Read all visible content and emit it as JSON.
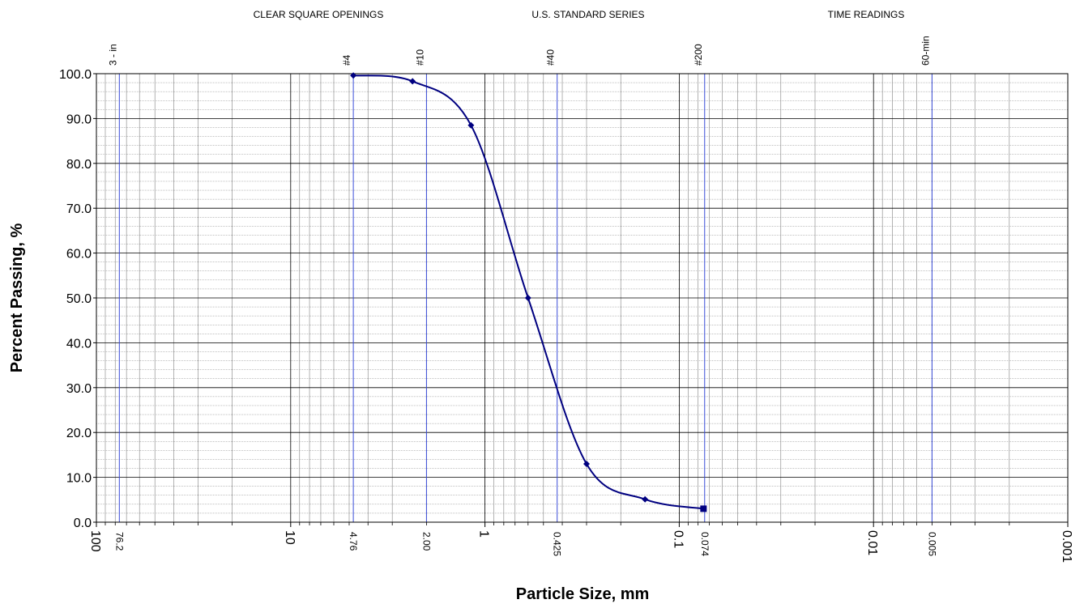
{
  "chart_data": {
    "type": "line",
    "x_scale": "log",
    "x_reversed": true,
    "xlim": [
      100,
      0.001
    ],
    "ylim": [
      0,
      100
    ],
    "xlabel": "Particle Size, mm",
    "ylabel": "Percent Passing, %",
    "header_labels": [
      "CLEAR SQUARE OPENINGS",
      "U.S. STANDARD SERIES",
      "TIME READINGS"
    ],
    "y_ticks": [
      "0.0",
      "10.0",
      "20.0",
      "30.0",
      "40.0",
      "50.0",
      "60.0",
      "70.0",
      "80.0",
      "90.0",
      "100.0"
    ],
    "x_ticks": [
      {
        "value": 100,
        "label": "100"
      },
      {
        "value": 10,
        "label": "10"
      },
      {
        "value": 1,
        "label": "1"
      },
      {
        "value": 0.1,
        "label": "0.1"
      },
      {
        "value": 0.01,
        "label": "0.01"
      },
      {
        "value": 0.001,
        "label": "0.001"
      }
    ],
    "sieve_lines": [
      {
        "value": 76.2,
        "top_label": "3 - in",
        "bottom_label": "76.2"
      },
      {
        "value": 4.76,
        "top_label": "#4",
        "bottom_label": "4.76"
      },
      {
        "value": 2.0,
        "top_label": "#10",
        "bottom_label": "2.00"
      },
      {
        "value": 0.425,
        "top_label": "#40",
        "bottom_label": "0.425"
      },
      {
        "value": 0.074,
        "top_label": "#200",
        "bottom_label": "0.074"
      },
      {
        "value": 0.005,
        "top_label": "60-min",
        "bottom_label": "0.005"
      }
    ],
    "series": [
      {
        "x": [
          4.76,
          2.36,
          1.18,
          0.6,
          0.3,
          0.15,
          0.075
        ],
        "y": [
          99.6,
          98.3,
          88.5,
          50.0,
          13.0,
          5.1,
          3.0
        ]
      }
    ],
    "grid": true,
    "colors": {
      "series": "#000080",
      "sieve_line": "#3a4cd8",
      "grid_major": "#000000",
      "grid_minor": "#808080"
    }
  }
}
